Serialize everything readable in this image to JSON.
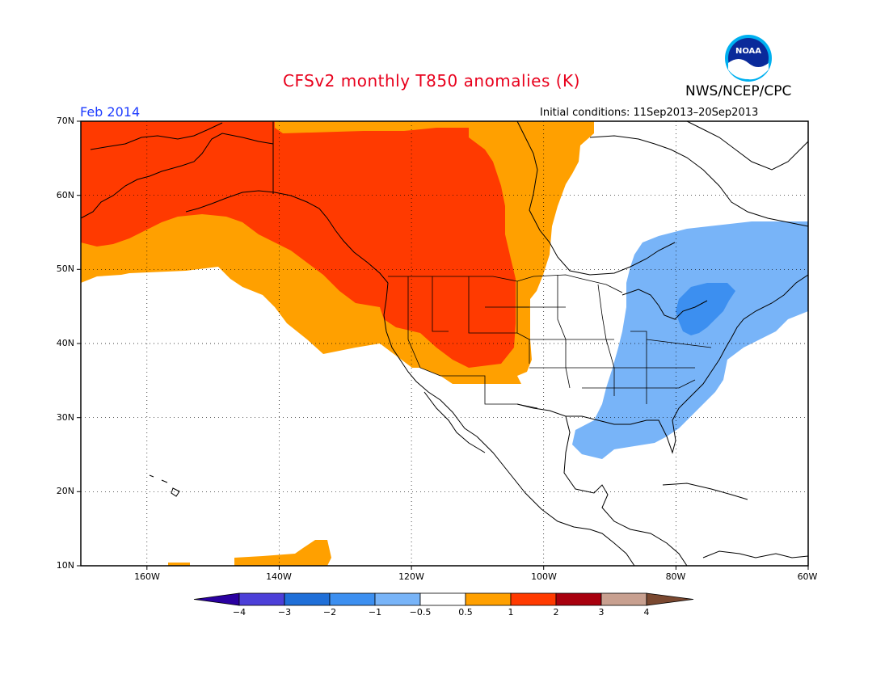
{
  "title": "CFSv2 monthly T850 anomalies (K)",
  "agency": "NWS/NCEP/CPC",
  "logo_text": "NOAA",
  "valid_month": "Feb 2014",
  "initial_conditions": "Initial conditions: 11Sep2013–20Sep2013",
  "lat_labels": [
    "70N",
    "60N",
    "50N",
    "40N",
    "30N",
    "20N",
    "10N"
  ],
  "lon_labels": [
    "160W",
    "140W",
    "120W",
    "100W",
    "80W",
    "60W"
  ],
  "colorbar": {
    "labels": [
      "−4",
      "−3",
      "−2",
      "−1",
      "−0.5",
      "0.5",
      "1",
      "2",
      "3",
      "4"
    ],
    "colors": [
      "#2a00a0",
      "#4c3fd8",
      "#1f6fd8",
      "#3c8ff0",
      "#78b4f8",
      "#ffffff",
      "#ffa000",
      "#ff3a00",
      "#a8000e",
      "#c8a090",
      "#7a4830"
    ]
  },
  "colors": {
    "title": "#e8001c",
    "month": "#1e3cff",
    "warm_light": "#ffa000",
    "warm_strong": "#ff3a00",
    "cool_light": "#78b4f8",
    "cool_strong": "#3c8ff0"
  },
  "map": {
    "lon_range": [
      "170W",
      "60W"
    ],
    "lat_range": [
      "10N",
      "70N"
    ],
    "grid": "dotted"
  }
}
